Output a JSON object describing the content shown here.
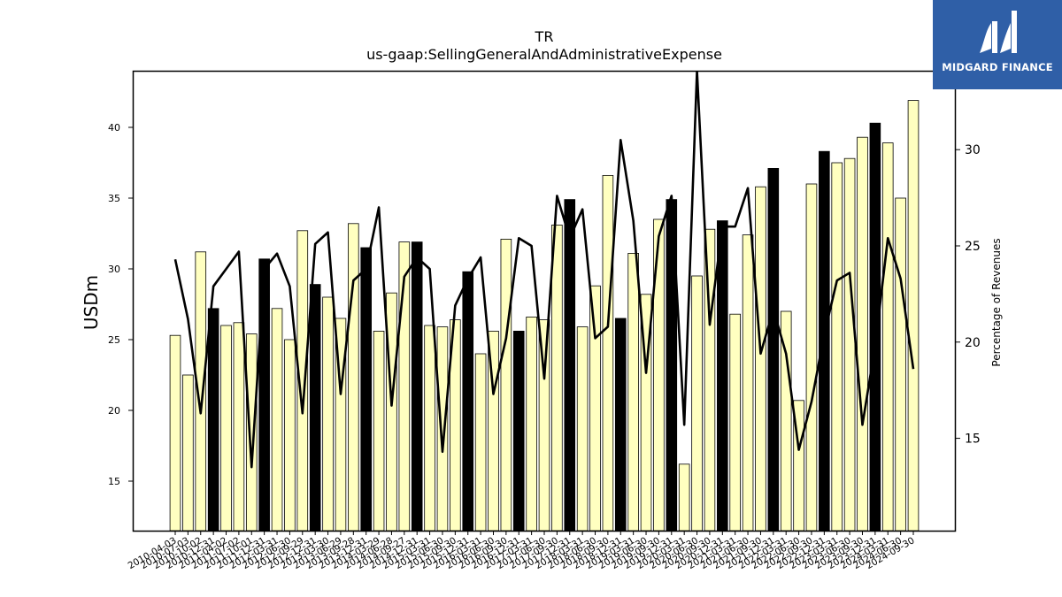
{
  "chart_data": {
    "type": "bar",
    "title": "TR",
    "subtitle": "us-gaap:SellingGeneralAndAdministrativeExpense",
    "ylabel": "USDm",
    "y2label": "Percentage of Revenues",
    "ylim": [
      11.5,
      44
    ],
    "y2lim": [
      10.2,
      34.1
    ],
    "yticks": [
      15,
      20,
      25,
      30,
      35,
      40
    ],
    "y2ticks": [
      15,
      20,
      25,
      30
    ],
    "grid": false,
    "categories": [
      "2010-04-03",
      "2010-07-03",
      "2010-10-02",
      "2010-12-31",
      "2011-04-02",
      "2011-07-02",
      "2011-10-01",
      "2011-12-31",
      "2012-03-31",
      "2012-06-30",
      "2012-09-29",
      "2012-12-31",
      "2013-03-30",
      "2013-06-29",
      "2013-09-28",
      "2013-12-31",
      "2014-03-29",
      "2014-06-28",
      "2014-09-27",
      "2014-12-31",
      "2015-03-31",
      "2015-06-30",
      "2015-09-30",
      "2015-12-31",
      "2016-03-31",
      "2016-06-30",
      "2016-09-30",
      "2016-12-31",
      "2017-03-31",
      "2017-06-30",
      "2017-09-30",
      "2017-12-31",
      "2018-03-31",
      "2018-06-30",
      "2018-09-30",
      "2018-12-31",
      "2019-03-31",
      "2019-06-30",
      "2019-09-30",
      "2019-12-31",
      "2020-03-31",
      "2020-06-30",
      "2020-09-30",
      "2020-12-31",
      "2021-03-31",
      "2021-06-30",
      "2021-09-30",
      "2021-12-31",
      "2022-03-31",
      "2022-06-30",
      "2022-09-30",
      "2022-12-31",
      "2023-03-31",
      "2023-06-30",
      "2023-09-30",
      "2023-12-31",
      "2024-03-31",
      "2024-06-30",
      "2024-09-30"
    ],
    "series": [
      {
        "kind": "bar",
        "axis": "left",
        "values": [
          25.3,
          22.5,
          31.2,
          27.2,
          26.0,
          26.2,
          25.4,
          30.7,
          27.2,
          25.0,
          32.7,
          28.9,
          28.0,
          26.5,
          33.2,
          31.5,
          25.6,
          28.3,
          31.9,
          31.9,
          26.0,
          25.9,
          26.4,
          29.8,
          24.0,
          25.6,
          32.1,
          25.6,
          26.6,
          26.4,
          33.1,
          34.9,
          25.9,
          28.8,
          36.6,
          26.5,
          31.1,
          28.2,
          33.5,
          34.9,
          16.2,
          29.5,
          32.8,
          33.4,
          26.8,
          32.4,
          35.8,
          37.1,
          27.0,
          20.7,
          36.0,
          38.3,
          37.5,
          37.8,
          39.3,
          40.3,
          38.9,
          35.0,
          41.9
        ],
        "highlight": [
          false,
          false,
          false,
          true,
          false,
          false,
          false,
          true,
          false,
          false,
          false,
          true,
          false,
          false,
          false,
          true,
          false,
          false,
          false,
          true,
          false,
          false,
          false,
          true,
          false,
          false,
          false,
          true,
          false,
          false,
          false,
          true,
          false,
          false,
          false,
          true,
          false,
          false,
          false,
          true,
          false,
          false,
          false,
          true,
          false,
          false,
          false,
          true,
          false,
          false,
          false,
          true,
          false,
          false,
          false,
          true,
          false,
          false,
          false
        ]
      },
      {
        "kind": "line",
        "axis": "right",
        "values": [
          24.3,
          21.2,
          16.3,
          22.9,
          23.8,
          24.7,
          13.5,
          23.8,
          24.6,
          22.9,
          16.3,
          25.1,
          25.7,
          17.3,
          23.2,
          23.8,
          27.0,
          16.7,
          23.4,
          24.4,
          23.8,
          14.3,
          21.9,
          23.3,
          24.4,
          17.3,
          20.2,
          25.4,
          25.0,
          18.1,
          27.6,
          25.4,
          26.9,
          20.2,
          20.8,
          30.5,
          26.3,
          18.4,
          25.5,
          27.6,
          15.7,
          34.1,
          20.9,
          26.0,
          26.0,
          28.0,
          19.4,
          21.7,
          19.4,
          14.4,
          16.9,
          20.4,
          23.2,
          23.6,
          15.7,
          19.8,
          25.4,
          23.3,
          18.6
        ]
      }
    ],
    "colors": {
      "bar": "#ffffc0",
      "bar_highlight": "#000000",
      "edge": "#000000",
      "line": "#000000"
    }
  },
  "logo": {
    "text": "MIDGARD FINANCE"
  }
}
